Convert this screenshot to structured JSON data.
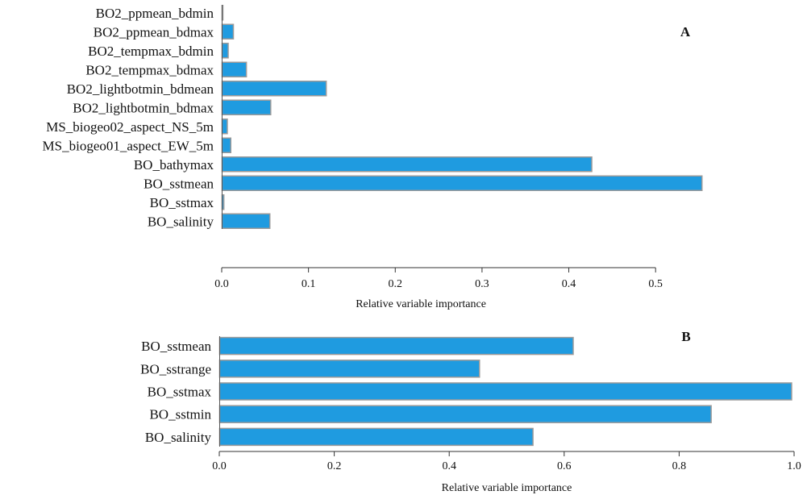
{
  "figure": {
    "background": "#ffffff",
    "bar_fill": "#1f9be0",
    "bar_stroke": "#9a9a9a",
    "text_color": "#111111"
  },
  "chart_data": [
    {
      "panel_label": "A",
      "type": "bar",
      "orientation": "horizontal",
      "categories": [
        "BO2_ppmean_bdmin",
        "BO2_ppmean_bdmax",
        "BO2_tempmax_bdmin",
        "BO2_tempmax_bdmax",
        "BO2_lightbotmin_bdmean",
        "BO2_lightbotmin_bdmax",
        "MS_biogeo02_aspect_NS_5m",
        "MS_biogeo01_aspect_EW_5m",
        "BO_bathymax",
        "BO_sstmean",
        "BO_sstmax",
        "BO_salinity"
      ],
      "values": [
        0.0,
        0.013,
        0.007,
        0.028,
        0.12,
        0.056,
        0.006,
        0.01,
        0.426,
        0.553,
        0.002,
        0.055
      ],
      "xlabel": "Relative variable importance",
      "ylabel": "",
      "xlim": [
        0,
        0.55
      ],
      "xticks": [
        0.0,
        0.1,
        0.2,
        0.3,
        0.4,
        0.5
      ],
      "xtick_labels": [
        "0.0",
        "0.1",
        "0.2",
        "0.3",
        "0.4",
        "0.5"
      ],
      "grid": false,
      "legend": "none"
    },
    {
      "panel_label": "B",
      "type": "bar",
      "orientation": "horizontal",
      "categories": [
        "BO_sstmean",
        "BO_sstrange",
        "BO_sstmax",
        "BO_sstmin",
        "BO_salinity"
      ],
      "values": [
        0.615,
        0.452,
        0.995,
        0.855,
        0.545
      ],
      "xlabel": "Relative variable importance",
      "ylabel": "",
      "xlim": [
        0,
        1.0
      ],
      "xticks": [
        0.0,
        0.2,
        0.4,
        0.6,
        0.8,
        1.0
      ],
      "xtick_labels": [
        "0.0",
        "0.2",
        "0.4",
        "0.6",
        "0.8",
        "1.0"
      ],
      "grid": false,
      "legend": "none"
    }
  ]
}
